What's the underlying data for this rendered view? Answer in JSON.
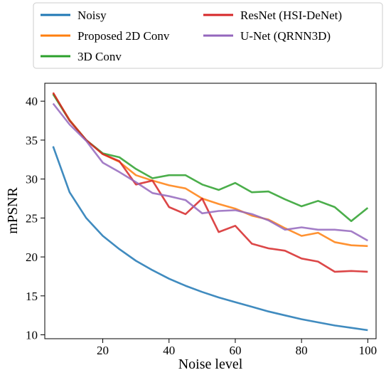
{
  "chart_data": {
    "type": "line",
    "title": "",
    "xlabel": "Noise level",
    "ylabel": "mPSNR",
    "xlim": [
      2.5,
      102.5
    ],
    "ylim": [
      9.5,
      42.3
    ],
    "xticks": [
      20,
      40,
      60,
      80,
      100
    ],
    "yticks": [
      10,
      15,
      20,
      25,
      30,
      35,
      40
    ],
    "grid": false,
    "legend_position": "above-plot",
    "x": [
      5,
      10,
      15,
      20,
      25,
      30,
      35,
      40,
      45,
      50,
      55,
      60,
      65,
      70,
      75,
      80,
      85,
      90,
      95,
      100
    ],
    "series": [
      {
        "name": "Noisy",
        "color": "#1f77b4",
        "values": [
          34.2,
          28.3,
          25.0,
          22.7,
          21.0,
          19.5,
          18.3,
          17.2,
          16.3,
          15.5,
          14.8,
          14.2,
          13.6,
          13.0,
          12.5,
          12.0,
          11.6,
          11.2,
          10.9,
          10.6
        ]
      },
      {
        "name": "Proposed 2D Conv",
        "color": "#ff7f0e",
        "values": [
          41.0,
          37.6,
          35.0,
          33.2,
          32.2,
          30.5,
          29.8,
          29.2,
          28.8,
          27.5,
          26.8,
          26.2,
          25.3,
          24.8,
          23.7,
          22.7,
          23.1,
          21.9,
          21.5,
          21.4
        ]
      },
      {
        "name": "3D Conv",
        "color": "#2ca02c",
        "values": [
          40.9,
          37.5,
          35.0,
          33.3,
          32.8,
          31.3,
          30.1,
          30.5,
          30.5,
          29.3,
          28.6,
          29.5,
          28.3,
          28.4,
          27.4,
          26.5,
          27.2,
          26.4,
          24.6,
          26.3
        ]
      },
      {
        "name": "ResNet (HSI-DeNet)",
        "color": "#d62728",
        "values": [
          41.1,
          37.5,
          35.0,
          33.2,
          32.3,
          29.3,
          29.8,
          26.4,
          25.5,
          27.5,
          23.2,
          24.0,
          21.7,
          21.1,
          20.8,
          19.8,
          19.4,
          18.1,
          18.2,
          18.1
        ]
      },
      {
        "name": "U-Net (QRNN3D)",
        "color": "#9467bd",
        "values": [
          39.7,
          37.0,
          34.9,
          32.1,
          30.9,
          29.6,
          28.2,
          27.8,
          27.3,
          25.6,
          25.9,
          26.0,
          25.5,
          24.7,
          23.5,
          23.8,
          23.5,
          23.5,
          23.3,
          22.1
        ]
      }
    ]
  }
}
